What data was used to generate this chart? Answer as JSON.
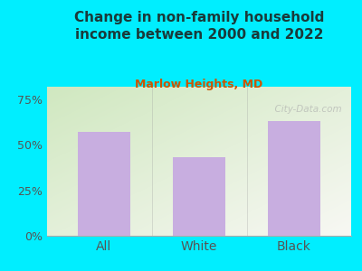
{
  "title": "Change in non-family household\nincome between 2000 and 2022",
  "subtitle": "Marlow Heights, MD",
  "categories": [
    "All",
    "White",
    "Black"
  ],
  "values": [
    57,
    43,
    63
  ],
  "bar_color": "#c8aee0",
  "title_color": "#1a3a3a",
  "subtitle_color": "#cc5500",
  "background_outer": "#00eeff",
  "yticks": [
    0,
    25,
    50,
    75
  ],
  "ytick_labels": [
    "0%",
    "25%",
    "50%",
    "75%"
  ],
  "ymax": 82,
  "tick_color": "#555555",
  "watermark": "  City-Data.com",
  "grad_color_topleft": "#ddeedd",
  "grad_color_bottomright": "#f8f8f0"
}
